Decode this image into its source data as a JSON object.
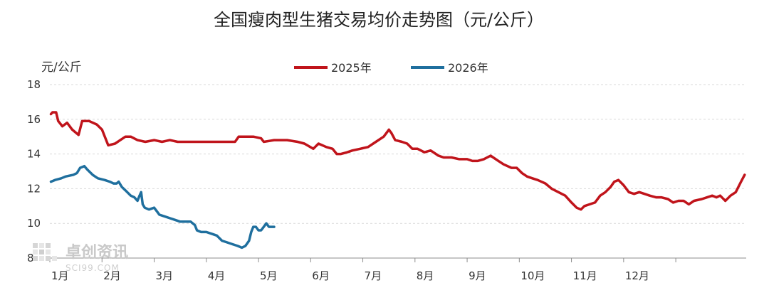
{
  "chart_data": {
    "type": "line",
    "title": "全国瘦肉型生猪交易均价走势图（元/公斤）",
    "ylabel": "元/公斤",
    "xlabel": "",
    "ylim": [
      8,
      18
    ],
    "yticks": [
      "8",
      "10",
      "12",
      "14",
      "16",
      "18"
    ],
    "xticks": [
      "1月",
      "2月",
      "3月",
      "4月",
      "5月",
      "6月",
      "7月",
      "8月",
      "9月",
      "10月",
      "11月",
      "12月"
    ],
    "grid": "horizontal",
    "legend_position": "top",
    "series": [
      {
        "name": "2025年",
        "color": "#c0141b",
        "points": [
          [
            0.02,
            16.3
          ],
          [
            0.05,
            16.4
          ],
          [
            0.12,
            16.4
          ],
          [
            0.16,
            15.9
          ],
          [
            0.24,
            15.6
          ],
          [
            0.33,
            15.8
          ],
          [
            0.43,
            15.4
          ],
          [
            0.55,
            15.1
          ],
          [
            0.62,
            15.9
          ],
          [
            0.75,
            15.9
          ],
          [
            0.9,
            15.7
          ],
          [
            1.0,
            15.4
          ],
          [
            1.12,
            14.5
          ],
          [
            1.25,
            14.6
          ],
          [
            1.35,
            14.8
          ],
          [
            1.45,
            15.0
          ],
          [
            1.55,
            15.0
          ],
          [
            1.68,
            14.8
          ],
          [
            1.83,
            14.7
          ],
          [
            2.0,
            14.8
          ],
          [
            2.15,
            14.7
          ],
          [
            2.3,
            14.8
          ],
          [
            2.45,
            14.7
          ],
          [
            2.6,
            14.7
          ],
          [
            2.8,
            14.7
          ],
          [
            3.0,
            14.7
          ],
          [
            3.2,
            14.7
          ],
          [
            3.4,
            14.7
          ],
          [
            3.55,
            14.7
          ],
          [
            3.62,
            15.0
          ],
          [
            3.75,
            15.0
          ],
          [
            3.9,
            15.0
          ],
          [
            4.05,
            14.9
          ],
          [
            4.1,
            14.7
          ],
          [
            4.3,
            14.8
          ],
          [
            4.55,
            14.8
          ],
          [
            4.75,
            14.7
          ],
          [
            4.88,
            14.6
          ],
          [
            5.05,
            14.3
          ],
          [
            5.15,
            14.6
          ],
          [
            5.3,
            14.4
          ],
          [
            5.42,
            14.3
          ],
          [
            5.5,
            14.0
          ],
          [
            5.58,
            14.0
          ],
          [
            5.7,
            14.1
          ],
          [
            5.8,
            14.2
          ],
          [
            5.95,
            14.3
          ],
          [
            6.1,
            14.4
          ],
          [
            6.25,
            14.7
          ],
          [
            6.4,
            15.0
          ],
          [
            6.5,
            15.4
          ],
          [
            6.55,
            15.2
          ],
          [
            6.62,
            14.8
          ],
          [
            6.75,
            14.7
          ],
          [
            6.85,
            14.6
          ],
          [
            6.95,
            14.3
          ],
          [
            7.05,
            14.3
          ],
          [
            7.18,
            14.1
          ],
          [
            7.3,
            14.2
          ],
          [
            7.45,
            13.9
          ],
          [
            7.55,
            13.8
          ],
          [
            7.7,
            13.8
          ],
          [
            7.85,
            13.7
          ],
          [
            8.0,
            13.7
          ],
          [
            8.1,
            13.6
          ],
          [
            8.2,
            13.6
          ],
          [
            8.32,
            13.7
          ],
          [
            8.45,
            13.9
          ],
          [
            8.6,
            13.6
          ],
          [
            8.7,
            13.4
          ],
          [
            8.85,
            13.2
          ],
          [
            8.95,
            13.2
          ],
          [
            9.05,
            12.9
          ],
          [
            9.15,
            12.7
          ],
          [
            9.25,
            12.6
          ],
          [
            9.35,
            12.5
          ],
          [
            9.5,
            12.3
          ],
          [
            9.62,
            12.0
          ],
          [
            9.75,
            11.8
          ],
          [
            9.88,
            11.6
          ],
          [
            10.0,
            11.2
          ],
          [
            10.1,
            10.9
          ],
          [
            10.18,
            10.8
          ],
          [
            10.25,
            11.0
          ],
          [
            10.35,
            11.1
          ],
          [
            10.45,
            11.2
          ],
          [
            10.55,
            11.6
          ],
          [
            10.65,
            11.8
          ],
          [
            10.75,
            12.1
          ],
          [
            10.82,
            12.4
          ],
          [
            10.9,
            12.5
          ],
          [
            11.0,
            12.2
          ],
          [
            11.1,
            11.8
          ],
          [
            11.2,
            11.7
          ],
          [
            11.3,
            11.8
          ],
          [
            11.4,
            11.7
          ],
          [
            11.5,
            11.6
          ],
          [
            11.62,
            11.5
          ],
          [
            11.72,
            11.5
          ],
          [
            11.85,
            11.4
          ],
          [
            11.95,
            11.2
          ],
          [
            12.05,
            11.3
          ],
          [
            12.15,
            11.3
          ],
          [
            12.25,
            11.1
          ],
          [
            12.35,
            11.3
          ],
          [
            12.5,
            11.4
          ],
          [
            12.6,
            11.5
          ],
          [
            12.7,
            11.6
          ],
          [
            12.78,
            11.5
          ],
          [
            12.85,
            11.6
          ],
          [
            12.95,
            11.3
          ],
          [
            13.05,
            11.6
          ],
          [
            13.15,
            11.8
          ],
          [
            13.25,
            12.4
          ],
          [
            13.32,
            12.8
          ]
        ]
      },
      {
        "name": "2026年",
        "color": "#1f6f9e",
        "points": [
          [
            0.02,
            12.4
          ],
          [
            0.1,
            12.5
          ],
          [
            0.22,
            12.6
          ],
          [
            0.3,
            12.7
          ],
          [
            0.45,
            12.8
          ],
          [
            0.52,
            12.9
          ],
          [
            0.58,
            13.2
          ],
          [
            0.66,
            13.3
          ],
          [
            0.72,
            13.1
          ],
          [
            0.82,
            12.8
          ],
          [
            0.92,
            12.6
          ],
          [
            1.05,
            12.5
          ],
          [
            1.15,
            12.4
          ],
          [
            1.22,
            12.3
          ],
          [
            1.28,
            12.3
          ],
          [
            1.32,
            12.4
          ],
          [
            1.38,
            12.1
          ],
          [
            1.45,
            11.9
          ],
          [
            1.55,
            11.6
          ],
          [
            1.62,
            11.5
          ],
          [
            1.68,
            11.3
          ],
          [
            1.72,
            11.6
          ],
          [
            1.75,
            11.8
          ],
          [
            1.78,
            11.1
          ],
          [
            1.82,
            10.9
          ],
          [
            1.9,
            10.8
          ],
          [
            2.0,
            10.9
          ],
          [
            2.05,
            10.7
          ],
          [
            2.1,
            10.5
          ],
          [
            2.2,
            10.4
          ],
          [
            2.3,
            10.3
          ],
          [
            2.4,
            10.2
          ],
          [
            2.5,
            10.1
          ],
          [
            2.6,
            10.1
          ],
          [
            2.7,
            10.1
          ],
          [
            2.78,
            9.9
          ],
          [
            2.82,
            9.6
          ],
          [
            2.9,
            9.5
          ],
          [
            3.0,
            9.5
          ],
          [
            3.1,
            9.4
          ],
          [
            3.2,
            9.3
          ],
          [
            3.3,
            9.0
          ],
          [
            3.4,
            8.9
          ],
          [
            3.5,
            8.8
          ],
          [
            3.6,
            8.7
          ],
          [
            3.68,
            8.6
          ],
          [
            3.75,
            8.7
          ],
          [
            3.82,
            9.0
          ],
          [
            3.86,
            9.5
          ],
          [
            3.9,
            9.8
          ],
          [
            3.95,
            9.8
          ],
          [
            4.0,
            9.6
          ],
          [
            4.05,
            9.6
          ],
          [
            4.1,
            9.8
          ],
          [
            4.15,
            10.0
          ],
          [
            4.2,
            9.8
          ],
          [
            4.3,
            9.8
          ]
        ]
      }
    ]
  },
  "watermark": {
    "cn": "卓创资讯",
    "en": "SCI99.COM"
  }
}
